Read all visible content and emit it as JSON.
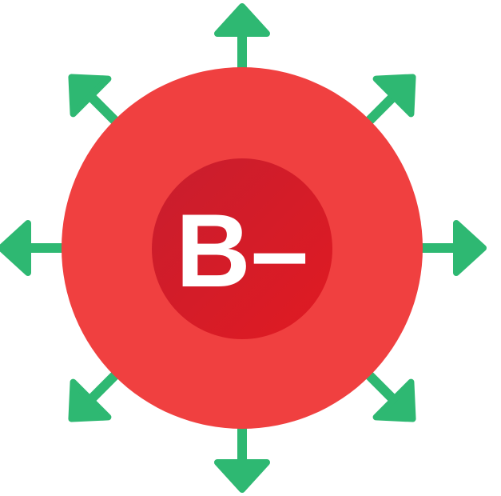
{
  "blood_type": {
    "label": "B–"
  },
  "colors": {
    "outer_cell": "#F04040",
    "inner_core_top": "#C81E2E",
    "inner_core_bottom": "#E01A22",
    "arrows": "#2EB872",
    "text": "#FFFFFF",
    "background": "#FFFFFF"
  },
  "icons": {
    "arrows": [
      "arrow-up-icon",
      "arrow-up-right-icon",
      "arrow-right-icon",
      "arrow-down-right-icon",
      "arrow-down-icon",
      "arrow-down-left-icon",
      "arrow-left-icon",
      "arrow-up-left-icon"
    ]
  }
}
